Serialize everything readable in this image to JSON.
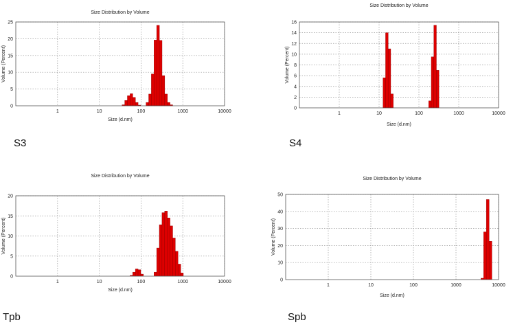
{
  "chart_data": [
    {
      "type": "bar",
      "title": "Size Distribution by Volume",
      "xlabel": "Size (d.nm)",
      "ylabel": "Volume (Percent)",
      "xscale": "log",
      "xlim": [
        0.1,
        10000
      ],
      "ylim": [
        0,
        25
      ],
      "xticks": [
        "1",
        "10",
        "100",
        "1000",
        "10000"
      ],
      "yticks": [
        "0",
        "5",
        "10",
        "15",
        "20",
        "25"
      ],
      "grid": true,
      "bar_width_log10": 0.065,
      "bars": [
        {
          "x": 37.8,
          "y": 0.3
        },
        {
          "x": 43.8,
          "y": 1.6
        },
        {
          "x": 50.7,
          "y": 3.0
        },
        {
          "x": 58.8,
          "y": 3.6
        },
        {
          "x": 68.1,
          "y": 2.5
        },
        {
          "x": 78.8,
          "y": 1.0
        },
        {
          "x": 91.3,
          "y": 0.2
        },
        {
          "x": 141.8,
          "y": 1.0
        },
        {
          "x": 164.2,
          "y": 3.5
        },
        {
          "x": 190.1,
          "y": 9.5
        },
        {
          "x": 220.2,
          "y": 19.6
        },
        {
          "x": 255.0,
          "y": 24.0
        },
        {
          "x": 295.3,
          "y": 19.5
        },
        {
          "x": 342.0,
          "y": 9.0
        },
        {
          "x": 396.1,
          "y": 3.5
        },
        {
          "x": 458.7,
          "y": 1.0
        },
        {
          "x": 531.2,
          "y": 0.3
        }
      ],
      "caption": "S3"
    },
    {
      "type": "bar",
      "title": "Size Distribution by Volume",
      "xlabel": "Size (d.nm)",
      "ylabel": "Volume (Percent)",
      "xscale": "log",
      "xlim": [
        0.1,
        10000
      ],
      "ylim": [
        0,
        16
      ],
      "xticks": [
        "1",
        "10",
        "100",
        "1000",
        "10000"
      ],
      "yticks": [
        "0",
        "2",
        "4",
        "6",
        "8",
        "10",
        "12",
        "14",
        "16"
      ],
      "grid": true,
      "bar_width_log10": 0.065,
      "bars": [
        {
          "x": 13.54,
          "y": 5.6
        },
        {
          "x": 15.69,
          "y": 14.0
        },
        {
          "x": 18.17,
          "y": 11.0
        },
        {
          "x": 21.04,
          "y": 2.6
        },
        {
          "x": 190.1,
          "y": 1.3
        },
        {
          "x": 220.2,
          "y": 9.5
        },
        {
          "x": 255.0,
          "y": 15.4
        },
        {
          "x": 295.3,
          "y": 7.0
        }
      ],
      "caption": "S4"
    },
    {
      "type": "bar",
      "title": "Size Distribution by Volume",
      "xlabel": "Size (d.nm)",
      "ylabel": "Volume (Percent)",
      "xscale": "log",
      "xlim": [
        0.1,
        10000
      ],
      "ylim": [
        0,
        20
      ],
      "xticks": [
        "1",
        "10",
        "100",
        "1000",
        "10000"
      ],
      "yticks": [
        "0",
        "5",
        "10",
        "15",
        "20"
      ],
      "grid": true,
      "bar_width_log10": 0.065,
      "bars": [
        {
          "x": 58.8,
          "y": 0.2
        },
        {
          "x": 68.1,
          "y": 1.0
        },
        {
          "x": 78.8,
          "y": 1.8
        },
        {
          "x": 91.3,
          "y": 1.6
        },
        {
          "x": 105.7,
          "y": 0.5
        },
        {
          "x": 220.2,
          "y": 1.0
        },
        {
          "x": 255.0,
          "y": 7.0
        },
        {
          "x": 295.3,
          "y": 12.8
        },
        {
          "x": 342.0,
          "y": 15.8
        },
        {
          "x": 396.1,
          "y": 16.2
        },
        {
          "x": 458.7,
          "y": 14.5
        },
        {
          "x": 531.2,
          "y": 12.5
        },
        {
          "x": 615.1,
          "y": 9.5
        },
        {
          "x": 712.4,
          "y": 6.2
        },
        {
          "x": 825.0,
          "y": 3.0
        },
        {
          "x": 955.4,
          "y": 0.8
        }
      ],
      "caption": "Tpb"
    },
    {
      "type": "bar",
      "title": "Size Distribution by Volume",
      "xlabel": "Size (d.nm)",
      "ylabel": "Volume (Percent)",
      "xscale": "log",
      "xlim": [
        0.1,
        10000
      ],
      "ylim": [
        0,
        50
      ],
      "xticks": [
        "1",
        "10",
        "100",
        "1000",
        "10000"
      ],
      "yticks": [
        "0",
        "10",
        "20",
        "30",
        "40",
        "50"
      ],
      "grid": true,
      "bar_width_log10": 0.065,
      "bars": [
        {
          "x": 4145,
          "y": 0.8
        },
        {
          "x": 4801,
          "y": 28.0
        },
        {
          "x": 5560,
          "y": 47.0
        },
        {
          "x": 6439,
          "y": 22.5
        }
      ],
      "caption": "Spb"
    }
  ]
}
